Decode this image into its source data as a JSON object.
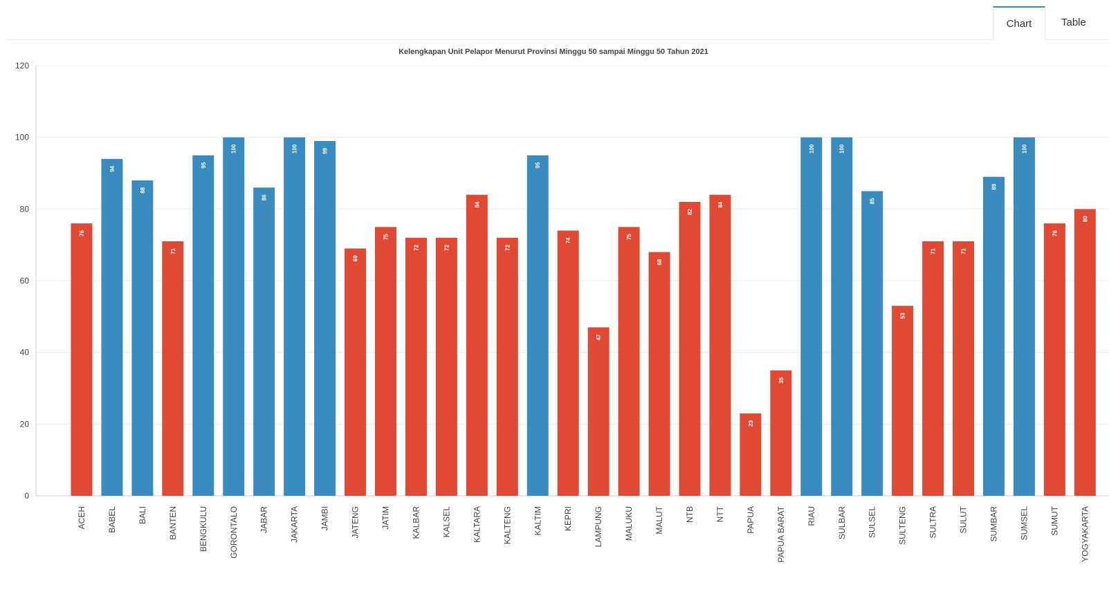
{
  "tabs": {
    "chart_label": "Chart",
    "table_label": "Table"
  },
  "colors": {
    "high": "#3a8bc0",
    "low": "#e04a35",
    "grid": "#ececec",
    "axis": "#cccccc"
  },
  "chart_data": {
    "type": "bar",
    "title": "Kelengkapan  Unit Pelapor   Menurut Provinsi  Minggu 50 sampai Minggu 50 Tahun 2021",
    "xlabel": "",
    "ylabel": "",
    "ylim": [
      0,
      120
    ],
    "yticks": [
      0,
      20,
      40,
      60,
      80,
      100,
      120
    ],
    "grid": true,
    "legend": "none",
    "categories": [
      "ACEH",
      "BABEL",
      "BALI",
      "BANTEN",
      "BENGKULU",
      "GORONTALO",
      "JABAR",
      "JAKARTA",
      "JAMBI",
      "JATENG",
      "JATIM",
      "KALBAR",
      "KALSEL",
      "KALTARA",
      "KALTENG",
      "KALTIM",
      "KEPRI",
      "LAMPUNG",
      "MALUKU",
      "MALUT",
      "NTB",
      "NTT",
      "PAPUA",
      "PAPUA BARAT",
      "RIAU",
      "SULBAR",
      "SULSEL",
      "SULTENG",
      "SULTRA",
      "SULUT",
      "SUMBAR",
      "SUMSEL",
      "SUMUT",
      "YOGYAKARTA"
    ],
    "values": [
      76,
      94,
      88,
      71,
      95,
      100,
      86,
      100,
      99,
      69,
      75,
      72,
      72,
      84,
      72,
      95,
      74,
      47,
      75,
      68,
      82,
      84,
      23,
      35,
      100,
      100,
      85,
      53,
      71,
      71,
      89,
      100,
      76,
      80
    ],
    "bar_colors": [
      "low",
      "high",
      "high",
      "low",
      "high",
      "high",
      "high",
      "high",
      "high",
      "low",
      "low",
      "low",
      "low",
      "low",
      "low",
      "high",
      "low",
      "low",
      "low",
      "low",
      "low",
      "low",
      "low",
      "low",
      "high",
      "high",
      "high",
      "low",
      "low",
      "low",
      "high",
      "high",
      "low",
      "low"
    ]
  }
}
